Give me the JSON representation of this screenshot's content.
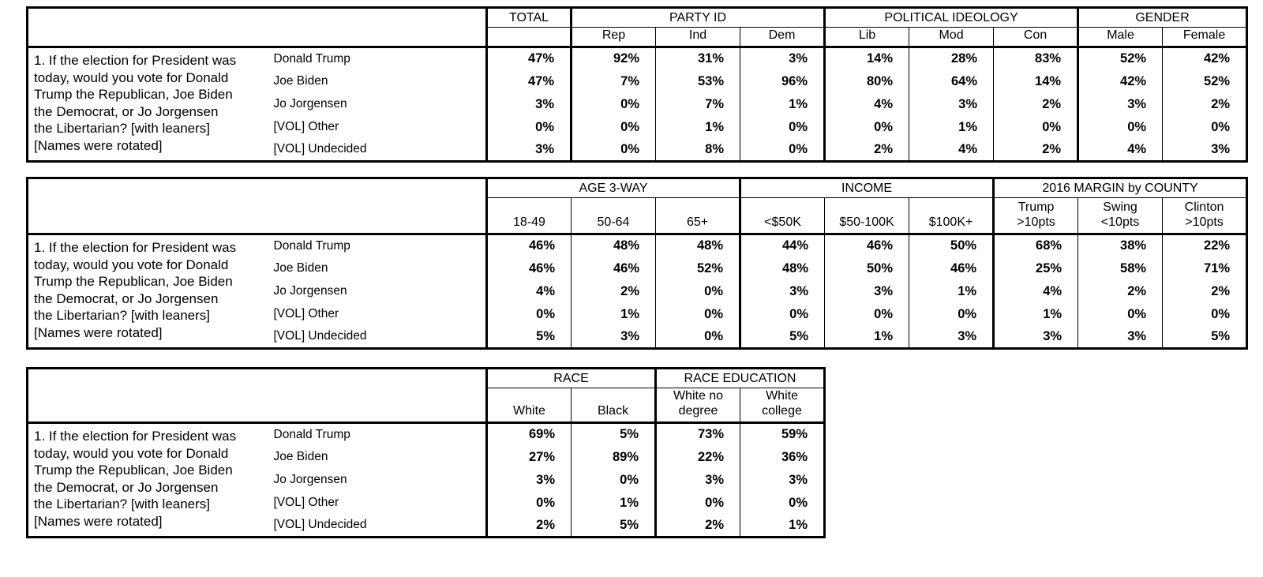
{
  "colors": {
    "background": "#ffffff",
    "text": "#000000",
    "border": "#000000"
  },
  "question": "1. If the election for President was\ntoday, would you vote for Donald\nTrump the Republican, Joe Biden\nthe Democrat, or Jo Jorgensen\nthe Libertarian? [with leaners]\n[Names were rotated]",
  "row_labels": [
    "Donald Trump",
    "Joe Biden",
    "Jo Jorgensen",
    "[VOL] Other",
    "[VOL] Undecided"
  ],
  "tables": [
    {
      "groups": [
        {
          "label": "TOTAL",
          "cols": [
            ""
          ]
        },
        {
          "label": "PARTY ID",
          "cols": [
            "Rep",
            "Ind",
            "Dem"
          ]
        },
        {
          "label": "POLITICAL IDEOLOGY",
          "cols": [
            "Lib",
            "Mod",
            "Con"
          ]
        },
        {
          "label": "GENDER",
          "cols": [
            "Male",
            "Female"
          ]
        }
      ],
      "values": [
        [
          "47%",
          "92%",
          "31%",
          "3%",
          "14%",
          "28%",
          "83%",
          "52%",
          "42%"
        ],
        [
          "47%",
          "7%",
          "53%",
          "96%",
          "80%",
          "64%",
          "14%",
          "42%",
          "52%"
        ],
        [
          "3%",
          "0%",
          "7%",
          "1%",
          "4%",
          "3%",
          "2%",
          "3%",
          "2%"
        ],
        [
          "0%",
          "0%",
          "1%",
          "0%",
          "0%",
          "1%",
          "0%",
          "0%",
          "0%"
        ],
        [
          "3%",
          "0%",
          "8%",
          "0%",
          "2%",
          "4%",
          "2%",
          "4%",
          "3%"
        ]
      ]
    },
    {
      "groups": [
        {
          "label": "AGE 3-WAY",
          "cols": [
            "18-49",
            "50-64",
            "65+"
          ]
        },
        {
          "label": "INCOME",
          "cols": [
            "<$50K",
            "$50-100K",
            "$100K+"
          ]
        },
        {
          "label": "2016 MARGIN by COUNTY",
          "cols": [
            "Trump\n>10pts",
            "Swing\n<10pts",
            "Clinton\n>10pts"
          ]
        }
      ],
      "values": [
        [
          "46%",
          "48%",
          "48%",
          "44%",
          "46%",
          "50%",
          "68%",
          "38%",
          "22%"
        ],
        [
          "46%",
          "46%",
          "52%",
          "48%",
          "50%",
          "46%",
          "25%",
          "58%",
          "71%"
        ],
        [
          "4%",
          "2%",
          "0%",
          "3%",
          "3%",
          "1%",
          "4%",
          "2%",
          "2%"
        ],
        [
          "0%",
          "1%",
          "0%",
          "0%",
          "0%",
          "0%",
          "1%",
          "0%",
          "0%"
        ],
        [
          "5%",
          "3%",
          "0%",
          "5%",
          "1%",
          "3%",
          "3%",
          "3%",
          "5%"
        ]
      ]
    },
    {
      "groups": [
        {
          "label": "RACE",
          "cols": [
            "White",
            "Black"
          ]
        },
        {
          "label": "RACE EDUCATION",
          "cols": [
            "White no\ndegree",
            "White\ncollege"
          ]
        }
      ],
      "values": [
        [
          "69%",
          "5%",
          "73%",
          "59%"
        ],
        [
          "27%",
          "89%",
          "22%",
          "36%"
        ],
        [
          "3%",
          "0%",
          "3%",
          "3%"
        ],
        [
          "0%",
          "1%",
          "0%",
          "0%"
        ],
        [
          "2%",
          "5%",
          "2%",
          "1%"
        ]
      ]
    }
  ]
}
